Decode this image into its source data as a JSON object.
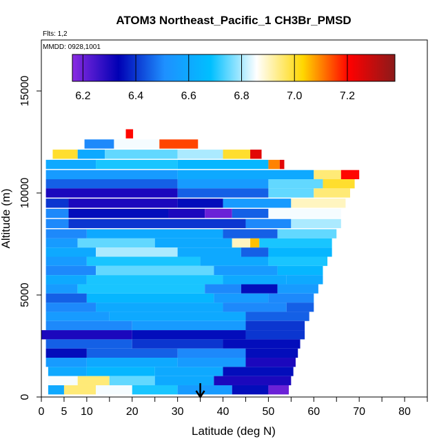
{
  "chart_data": {
    "type": "heatmap",
    "title": "ATOM3 Northeast_Pacific_1 CH3Br_PMSD",
    "flights_label": "Flts: 1,2",
    "date_label": "MMDD: 0928,1001",
    "xlabel": "Latitude (deg N)",
    "ylabel": "Altitude (m)",
    "xlim": [
      0,
      85
    ],
    "ylim": [
      0,
      17500
    ],
    "x_ticks": [
      0,
      5,
      10,
      20,
      30,
      40,
      50,
      60,
      70,
      80
    ],
    "x_minor_ticks": [
      15,
      25,
      35,
      45,
      55,
      65,
      75,
      85
    ],
    "y_ticks": [
      0,
      5000,
      10000,
      15000
    ],
    "colorbar": {
      "range": [
        6.16,
        7.38
      ],
      "ticks": [
        6.2,
        6.4,
        6.6,
        6.8,
        7.0,
        7.2
      ],
      "stops": [
        "#8a2be2",
        "#0000b4",
        "#1e90ff",
        "#00bfff",
        "#ffffff",
        "#ffd700",
        "#ff0000",
        "#8b1a1a"
      ]
    },
    "marker_arrow_latitude": 35,
    "layers": [
      {
        "alt": 12900,
        "segments": [
          [
            18.6,
            20.2,
            7.2
          ]
        ]
      },
      {
        "alt": 12400,
        "segments": [
          [
            9.5,
            16.0,
            6.5
          ],
          [
            16.0,
            26.0,
            6.85
          ],
          [
            26.0,
            34.5,
            7.15
          ]
        ]
      },
      {
        "alt": 11900,
        "segments": [
          [
            2.5,
            8.0,
            7.0
          ],
          [
            8.0,
            14.0,
            6.6
          ],
          [
            14.0,
            30.0,
            6.75
          ],
          [
            30.0,
            40.0,
            6.8
          ],
          [
            40.0,
            46.0,
            7.0
          ],
          [
            46.0,
            48.5,
            7.25
          ]
        ]
      },
      {
        "alt": 11400,
        "segments": [
          [
            1.0,
            12.0,
            6.6
          ],
          [
            12.0,
            30.0,
            6.7
          ],
          [
            30.0,
            50.0,
            6.65
          ],
          [
            50.0,
            52.5,
            7.1
          ],
          [
            52.5,
            53.5,
            7.25
          ]
        ]
      },
      {
        "alt": 10900,
        "segments": [
          [
            1.0,
            30.0,
            6.55
          ],
          [
            30.0,
            60.0,
            6.6
          ],
          [
            60.0,
            66.0,
            6.95
          ],
          [
            66.0,
            70.0,
            7.2
          ]
        ]
      },
      {
        "alt": 10450,
        "segments": [
          [
            1.0,
            30.0,
            6.45
          ],
          [
            30.0,
            50.0,
            6.55
          ],
          [
            50.0,
            62.0,
            6.75
          ],
          [
            62.0,
            69.0,
            7.0
          ]
        ]
      },
      {
        "alt": 10000,
        "segments": [
          [
            1.0,
            30.0,
            6.3
          ],
          [
            30.0,
            50.0,
            6.45
          ],
          [
            50.0,
            60.0,
            6.75
          ],
          [
            60.0,
            68.0,
            6.95
          ]
        ]
      },
      {
        "alt": 9500,
        "segments": [
          [
            1.0,
            6.0,
            6.4
          ],
          [
            6.0,
            30.0,
            6.3
          ],
          [
            30.0,
            40.0,
            6.35
          ],
          [
            40.0,
            55.0,
            6.55
          ],
          [
            55.0,
            67.0,
            6.9
          ]
        ]
      },
      {
        "alt": 9000,
        "segments": [
          [
            1.0,
            6.0,
            6.5
          ],
          [
            6.0,
            28.0,
            6.35
          ],
          [
            28.0,
            36.0,
            6.3
          ],
          [
            36.0,
            42.0,
            6.2
          ],
          [
            42.0,
            50.0,
            6.45
          ],
          [
            50.0,
            66.0,
            6.85
          ]
        ]
      },
      {
        "alt": 8500,
        "segments": [
          [
            1.0,
            6.0,
            6.5
          ],
          [
            6.0,
            45.0,
            6.4
          ],
          [
            45.0,
            55.0,
            6.5
          ],
          [
            55.0,
            66.0,
            6.8
          ]
        ]
      },
      {
        "alt": 8000,
        "segments": [
          [
            1.0,
            10.0,
            6.5
          ],
          [
            10.0,
            40.0,
            6.6
          ],
          [
            40.0,
            52.0,
            6.45
          ],
          [
            52.0,
            65.0,
            6.75
          ]
        ]
      },
      {
        "alt": 7550,
        "segments": [
          [
            1.0,
            8.0,
            6.55
          ],
          [
            8.0,
            25.0,
            6.75
          ],
          [
            25.0,
            42.0,
            6.6
          ],
          [
            42.0,
            46.0,
            6.9
          ],
          [
            46.0,
            48.0,
            7.05
          ],
          [
            48.0,
            64.0,
            6.7
          ]
        ]
      },
      {
        "alt": 7100,
        "segments": [
          [
            1.0,
            12.0,
            6.6
          ],
          [
            12.0,
            30.0,
            6.8
          ],
          [
            30.0,
            44.0,
            6.6
          ],
          [
            44.0,
            50.0,
            6.45
          ],
          [
            50.0,
            64.0,
            6.65
          ]
        ]
      },
      {
        "alt": 6650,
        "segments": [
          [
            1.0,
            10.0,
            6.55
          ],
          [
            10.0,
            35.0,
            6.7
          ],
          [
            35.0,
            50.0,
            6.6
          ],
          [
            50.0,
            63.0,
            6.7
          ]
        ]
      },
      {
        "alt": 6200,
        "segments": [
          [
            1.0,
            12.0,
            6.5
          ],
          [
            12.0,
            38.0,
            6.75
          ],
          [
            38.0,
            52.0,
            6.55
          ],
          [
            52.0,
            62.0,
            6.65
          ]
        ]
      },
      {
        "alt": 5750,
        "segments": [
          [
            1.0,
            10.0,
            6.6
          ],
          [
            10.0,
            40.0,
            6.7
          ],
          [
            40.0,
            54.0,
            6.6
          ],
          [
            54.0,
            62.0,
            6.6
          ]
        ]
      },
      {
        "alt": 5300,
        "segments": [
          [
            1.0,
            8.0,
            6.55
          ],
          [
            8.0,
            36.0,
            6.7
          ],
          [
            36.0,
            44.0,
            6.5
          ],
          [
            44.0,
            52.0,
            6.35
          ],
          [
            52.0,
            61.0,
            6.55
          ]
        ]
      },
      {
        "alt": 4850,
        "segments": [
          [
            1.0,
            10.0,
            6.45
          ],
          [
            10.0,
            38.0,
            6.65
          ],
          [
            38.0,
            50.0,
            6.55
          ],
          [
            50.0,
            60.0,
            6.5
          ]
        ]
      },
      {
        "alt": 4400,
        "segments": [
          [
            1.0,
            12.0,
            6.5
          ],
          [
            12.0,
            40.0,
            6.6
          ],
          [
            40.0,
            54.0,
            6.5
          ],
          [
            54.0,
            60.0,
            6.45
          ]
        ]
      },
      {
        "alt": 3950,
        "segments": [
          [
            1.0,
            15.0,
            6.55
          ],
          [
            15.0,
            45.0,
            6.6
          ],
          [
            45.0,
            59.0,
            6.45
          ]
        ]
      },
      {
        "alt": 3500,
        "segments": [
          [
            1.0,
            20.0,
            6.5
          ],
          [
            20.0,
            45.0,
            6.55
          ],
          [
            45.0,
            58.0,
            6.4
          ]
        ]
      },
      {
        "alt": 3050,
        "segments": [
          [
            0.0,
            20.0,
            6.3
          ],
          [
            20.0,
            45.0,
            6.35
          ],
          [
            45.0,
            58.0,
            6.4
          ]
        ]
      },
      {
        "alt": 2600,
        "segments": [
          [
            1.0,
            20.0,
            6.45
          ],
          [
            20.0,
            40.0,
            6.4
          ],
          [
            40.0,
            57.0,
            6.35
          ]
        ]
      },
      {
        "alt": 2150,
        "segments": [
          [
            1.0,
            10.0,
            6.35
          ],
          [
            10.0,
            30.0,
            6.45
          ],
          [
            30.0,
            45.0,
            6.5
          ],
          [
            45.0,
            56.5,
            6.35
          ]
        ]
      },
      {
        "alt": 1700,
        "segments": [
          [
            1.0,
            10.0,
            6.55
          ],
          [
            10.0,
            30.0,
            6.6
          ],
          [
            30.0,
            45.0,
            6.55
          ],
          [
            45.0,
            56.0,
            6.3
          ]
        ]
      },
      {
        "alt": 1250,
        "segments": [
          [
            1.5,
            10.0,
            6.6
          ],
          [
            10.0,
            25.0,
            6.65
          ],
          [
            25.0,
            40.0,
            6.6
          ],
          [
            40.0,
            55.5,
            6.35
          ]
        ]
      },
      {
        "alt": 800,
        "segments": [
          [
            1.5,
            8.0,
            6.85
          ],
          [
            8.0,
            15.0,
            6.95
          ],
          [
            15.0,
            25.0,
            6.75
          ],
          [
            25.0,
            38.0,
            6.6
          ],
          [
            38.0,
            55.0,
            6.3
          ]
        ]
      },
      {
        "alt": 350,
        "segments": [
          [
            1.5,
            5.0,
            6.6
          ],
          [
            5.0,
            12.0,
            6.95
          ],
          [
            12.0,
            20.0,
            6.85
          ],
          [
            20.0,
            30.0,
            6.7
          ],
          [
            30.0,
            42.0,
            6.55
          ],
          [
            42.0,
            50.0,
            6.35
          ],
          [
            50.0,
            54.5,
            6.2
          ]
        ]
      }
    ]
  }
}
